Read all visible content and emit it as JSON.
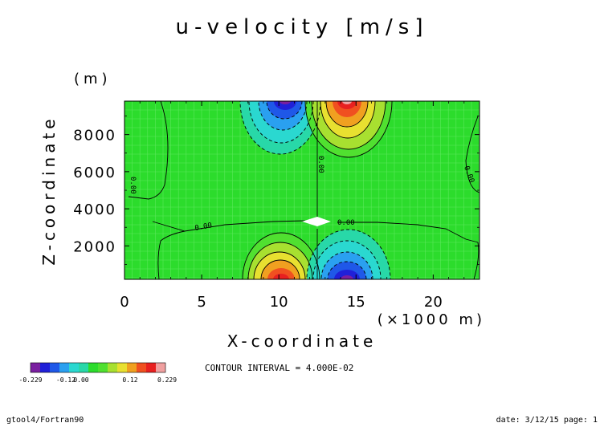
{
  "chart_data": {
    "type": "heatmap",
    "title": "u-velocity [m/s]",
    "xlabel": "X-coordinate",
    "ylabel": "Z-coordinate",
    "x_unit": "(×1000 m)",
    "y_unit": "(m)",
    "xlim": [
      0,
      23
    ],
    "ylim": [
      200,
      9800
    ],
    "xticks": [
      "0",
      "5",
      "10",
      "15",
      "20"
    ],
    "xtick_values": [
      0,
      5,
      10,
      15,
      20
    ],
    "yticks": [
      "2000",
      "4000",
      "6000",
      "8000"
    ],
    "ytick_values": [
      2000,
      4000,
      6000,
      8000
    ],
    "contour_labels": [
      "0.00",
      "0.00",
      "0.00",
      "0.00",
      "0.00"
    ],
    "contour_interval": "CONTOUR INTERVAL = 4.000E-02",
    "colorbar": {
      "colors": [
        "#7a1fa0",
        "#2020d8",
        "#1f58e8",
        "#2aa0f0",
        "#2ad8d0",
        "#28d8a8",
        "#2cdc2c",
        "#50e030",
        "#a8e030",
        "#e8e030",
        "#f0a020",
        "#f05020",
        "#e82020",
        "#f0a0a0"
      ],
      "labels": [
        "-0.229",
        "-0.12",
        "0.00",
        "0.12",
        "0.229"
      ]
    },
    "features": {
      "upper_negative_max": {
        "x": 10.5,
        "z": 9800,
        "value": -0.229
      },
      "upper_positive_max": {
        "x": 14.5,
        "z": 9800,
        "value": 0.229
      },
      "lower_positive_max": {
        "x": 10.5,
        "z": 200,
        "value": 0.229
      },
      "lower_negative_max": {
        "x": 14.5,
        "z": 200,
        "value": -0.229
      }
    },
    "grid": true
  },
  "footer": {
    "left": "gtool4/Fortran90",
    "right": "date: 3/12/15 page: 1"
  }
}
